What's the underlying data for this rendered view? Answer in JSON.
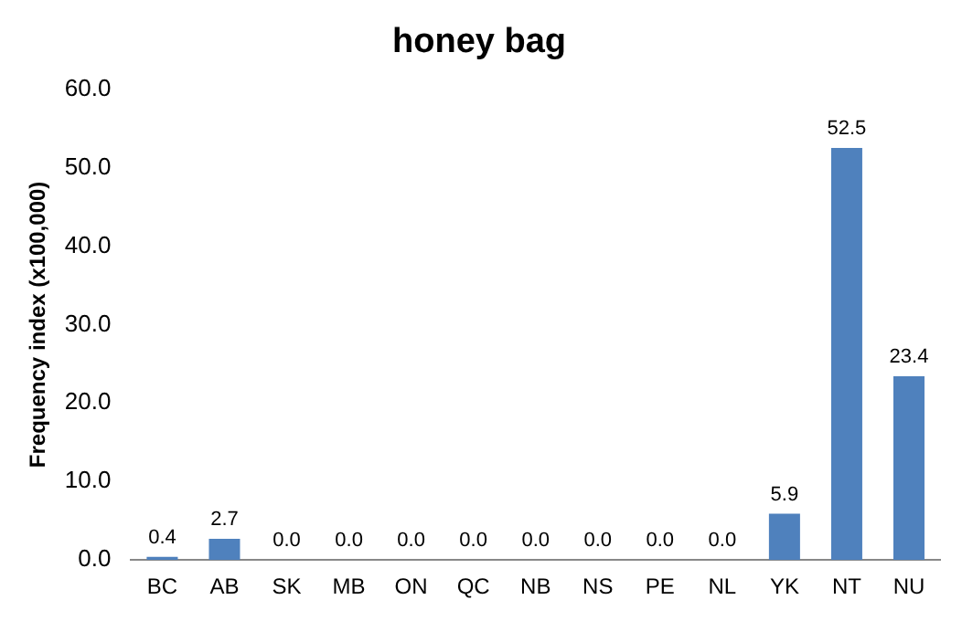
{
  "chart_data": {
    "type": "bar",
    "title": "honey bag",
    "ylabel": "Frequency index (x100,000)",
    "categories": [
      "BC",
      "AB",
      "SK",
      "MB",
      "ON",
      "QC",
      "NB",
      "NS",
      "PE",
      "NL",
      "YK",
      "NT",
      "NU"
    ],
    "values": [
      0.4,
      2.7,
      0.0,
      0.0,
      0.0,
      0.0,
      0.0,
      0.0,
      0.0,
      0.0,
      5.9,
      52.5,
      23.4
    ],
    "value_labels": [
      "0.4",
      "2.7",
      "0.0",
      "0.0",
      "0.0",
      "0.0",
      "0.0",
      "0.0",
      "0.0",
      "0.0",
      "5.9",
      "52.5",
      "23.4"
    ],
    "color": "#4f81bd",
    "ylim": [
      0,
      60
    ],
    "yticks": [
      {
        "value": 0,
        "label": "0.0"
      },
      {
        "value": 10,
        "label": "10.0"
      },
      {
        "value": 20,
        "label": "20.0"
      },
      {
        "value": 30,
        "label": "30.0"
      },
      {
        "value": 40,
        "label": "40.0"
      },
      {
        "value": 50,
        "label": "50.0"
      },
      {
        "value": 60,
        "label": "60.0"
      }
    ],
    "grid": false,
    "legend": false
  }
}
